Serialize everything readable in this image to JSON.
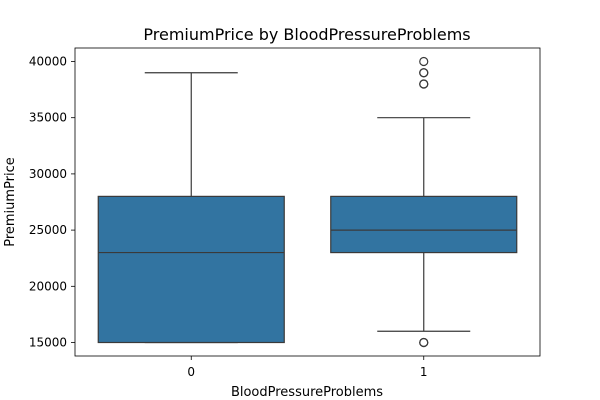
{
  "chart_data": {
    "type": "box",
    "title": "PremiumPrice by BloodPressureProblems",
    "xlabel": "BloodPressureProblems",
    "ylabel": "PremiumPrice",
    "categories": [
      "0",
      "1"
    ],
    "ylim": [
      13800,
      41200
    ],
    "yticks": [
      15000,
      20000,
      25000,
      30000,
      35000,
      40000
    ],
    "ytick_labels": [
      "15000",
      "20000",
      "25000",
      "30000",
      "35000",
      "40000"
    ],
    "grid": false,
    "box_color": "#3274a1",
    "line_color": "#3a3a3a",
    "boxes": [
      {
        "category": "0",
        "whisker_low": 15000,
        "q1": 15000,
        "median": 23000,
        "q3": 28000,
        "whisker_high": 39000,
        "outliers": []
      },
      {
        "category": "1",
        "whisker_low": 16000,
        "q1": 23000,
        "median": 25000,
        "q3": 28000,
        "whisker_high": 35000,
        "outliers": [
          15000,
          15000,
          38000,
          38000,
          39000,
          39000,
          40000
        ]
      }
    ]
  }
}
